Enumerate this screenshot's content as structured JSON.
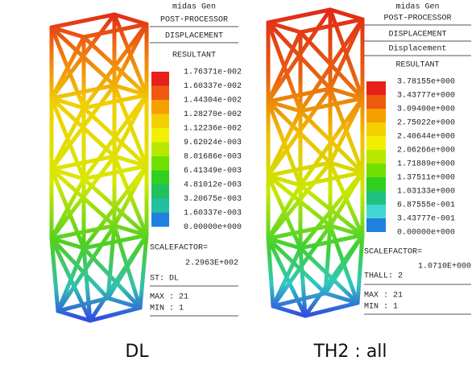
{
  "panels": [
    {
      "header": [
        "midas Gen",
        "POST-PROCESSOR"
      ],
      "sections": [
        "DISPLACEMENT"
      ],
      "component": "RESULTANT",
      "legend": {
        "labels": [
          "1.76371e-002",
          "1.60337e-002",
          "1.44304e-002",
          "1.28270e-002",
          "1.12236e-002",
          "9.62024e-003",
          "8.01686e-003",
          "6.41349e-003",
          "4.81012e-003",
          "3.20675e-003",
          "1.60337e-003",
          "0.00000e+000"
        ],
        "colors": [
          "#e8201a",
          "#f05a10",
          "#f5a000",
          "#f5d000",
          "#f0f000",
          "#b8e800",
          "#70e000",
          "#30d020",
          "#20c060",
          "#20c0a0",
          "#2080e0"
        ]
      },
      "scale_factor_label": "SCALEFACTOR=",
      "scale_factor": "2.2963E+002",
      "info": "ST: DL",
      "max": "MAX : 21",
      "min": "MIN : 1",
      "caption": "DL"
    },
    {
      "header": [
        "midas Gen",
        "POST-PROCESSOR"
      ],
      "sections": [
        "DISPLACEMENT",
        "Displacement"
      ],
      "component": "RESULTANT",
      "legend": {
        "labels": [
          "3.78155e+000",
          "3.43777e+000",
          "3.09400e+000",
          "2.75022e+000",
          "2.40644e+000",
          "2.06266e+000",
          "1.71889e+000",
          "1.37511e+000",
          "1.03133e+000",
          "6.87555e-001",
          "3.43777e-001",
          "0.00000e+000"
        ],
        "colors": [
          "#e8201a",
          "#f05a10",
          "#f5a000",
          "#f5d000",
          "#f0f000",
          "#b8e800",
          "#70e000",
          "#30d020",
          "#20c080",
          "#40d8d0",
          "#2080e0"
        ]
      },
      "scale_factor_label": "SCALEFACTOR=",
      "scale_factor": "1.0710E+000",
      "info": "THALL: 2",
      "max": "MAX : 21",
      "min": "MIN : 1",
      "caption": "TH2 : all"
    }
  ]
}
